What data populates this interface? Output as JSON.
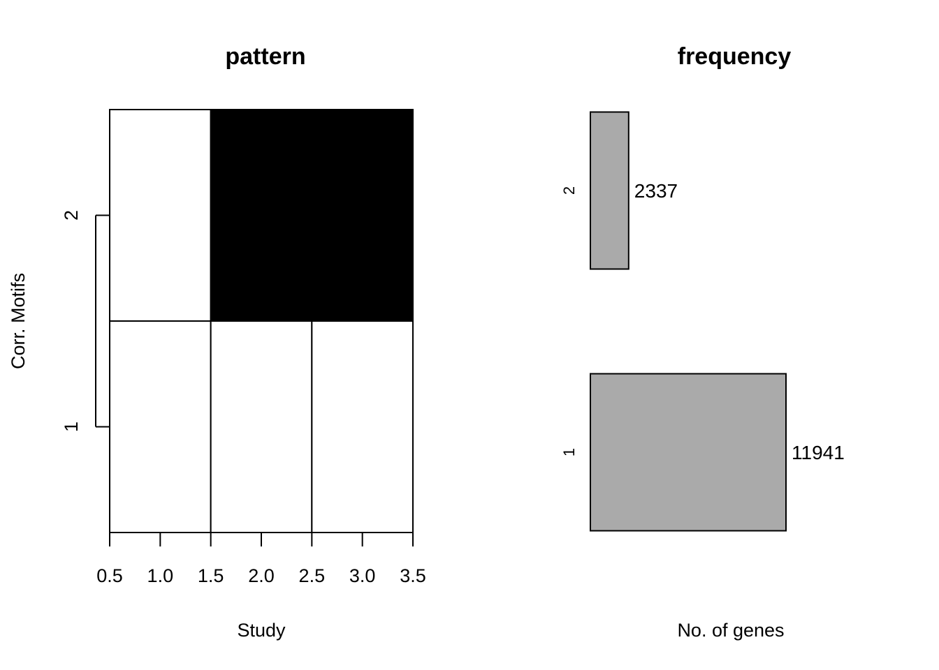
{
  "chart_data": [
    {
      "type": "heatmap",
      "title": "pattern",
      "xlabel": "Study",
      "ylabel": "Corr. Motifs",
      "xlim": [
        0.5,
        3.5
      ],
      "ylim": [
        0.5,
        2.5
      ],
      "x_ticks": [
        "0.5",
        "1.0",
        "1.5",
        "2.0",
        "2.5",
        "3.0",
        "3.5"
      ],
      "y_ticks": [
        "1",
        "2"
      ],
      "studies": [
        1,
        2,
        3
      ],
      "motifs": [
        1,
        2
      ],
      "values": [
        [
          0,
          0,
          0
        ],
        [
          0,
          1,
          1
        ]
      ],
      "colors": {
        "0": "#ffffff",
        "1": "#000000"
      },
      "grid": false
    },
    {
      "type": "bar",
      "orientation": "horizontal",
      "title": "frequency",
      "xlabel": "No. of genes",
      "categories": [
        "1",
        "2"
      ],
      "values": [
        11941,
        2337
      ],
      "data_labels": [
        "11941",
        "2337"
      ],
      "bar_color": "#aaaaaa",
      "grid": false
    }
  ]
}
